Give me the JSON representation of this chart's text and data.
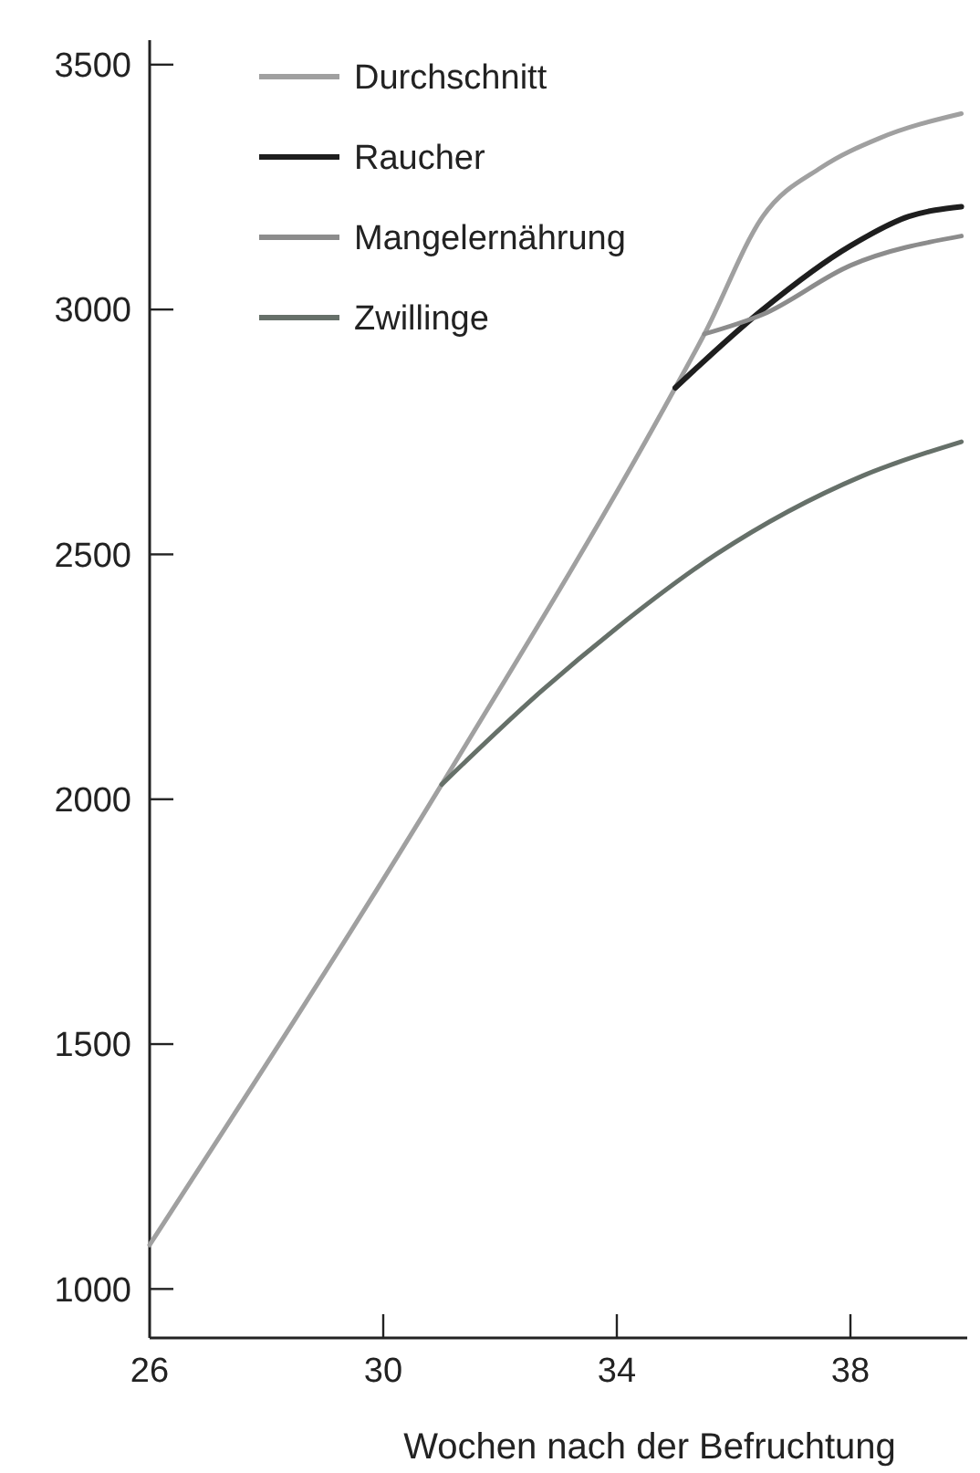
{
  "chart_data": {
    "type": "line",
    "xlabel": "Wochen nach der Befruchtung",
    "xlim": [
      26,
      40
    ],
    "xticks": [
      26,
      30,
      34,
      38
    ],
    "ylim": [
      900,
      3550
    ],
    "yticks": [
      1000,
      1500,
      2000,
      2500,
      3000,
      3500
    ],
    "legend": "top left",
    "grid": false,
    "marker": "none",
    "series": [
      {
        "name": "Durchschnitt",
        "color": "#a0a0a0",
        "x": [
          26,
          31,
          35,
          35.5,
          36.5,
          37.5,
          38.5,
          39.9
        ],
        "values": [
          1090,
          2030,
          2840,
          2950,
          3190,
          3290,
          3350,
          3400
        ]
      },
      {
        "name": "Raucher",
        "color": "#1e1e1e",
        "x": [
          35,
          36.5,
          38,
          39,
          39.9
        ],
        "values": [
          2840,
          3000,
          3130,
          3190,
          3210
        ]
      },
      {
        "name": "Mangelernährung",
        "color": "#8c8c8c",
        "x": [
          35.5,
          36.5,
          38,
          39.9
        ],
        "values": [
          2950,
          2990,
          3090,
          3150
        ]
      },
      {
        "name": "Zwillinge",
        "color": "#667069",
        "x": [
          31,
          32.7,
          34,
          35.7,
          38.2,
          39.9
        ],
        "values": [
          2030,
          2220,
          2350,
          2500,
          2660,
          2730
        ]
      }
    ]
  }
}
